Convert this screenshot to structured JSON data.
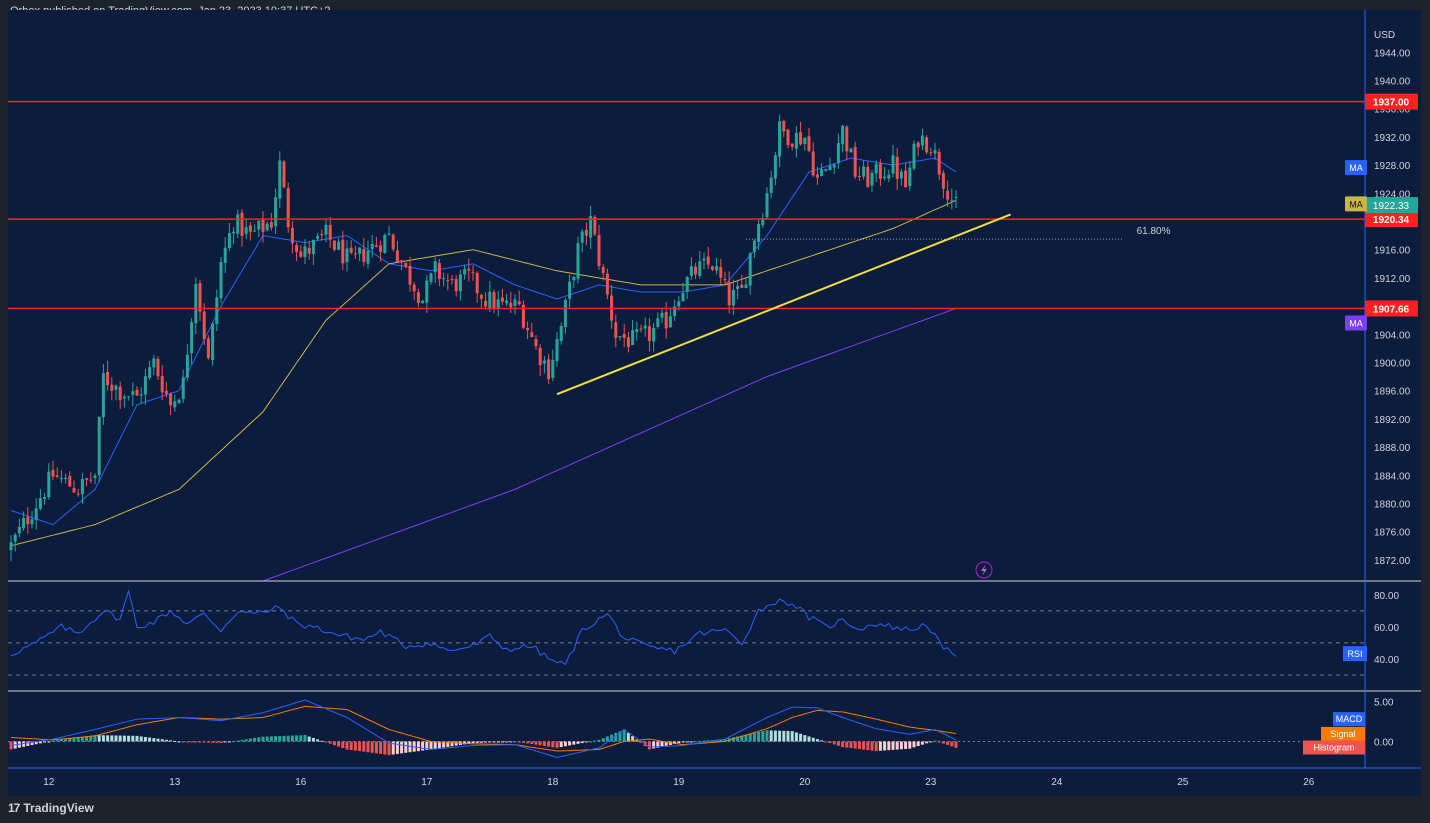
{
  "header": {
    "published_text": "Orbex published on TradingView.com, Jan 23, 2023 10:37 UTC+2"
  },
  "footer": {
    "logo_text": "TradingView"
  },
  "colors": {
    "background": "#0c1c3c",
    "frame": "#1e222d",
    "up_candle": "#26a69a",
    "down_candle": "#ef5350",
    "ma_blue": "#2962ff",
    "ma_yellow": "#c9b44a",
    "ma_purple": "#7b3ff2",
    "horizontal_level": "#ff2020",
    "trendline": "#f2e03a",
    "rsi_line": "#2962ff",
    "macd_line": "#2962ff",
    "signal_line": "#f57c00"
  },
  "chart_data": [
    {
      "type": "candlestick",
      "panel": "price",
      "currency_label": "USD",
      "x_tick_labels": [
        "12",
        "13",
        "16",
        "17",
        "18",
        "19",
        "20",
        "23",
        "24",
        "25",
        "26"
      ],
      "y_tick_labels": [
        "1944.00",
        "1940.00",
        "1936.00",
        "1932.00",
        "1928.00",
        "1924.00",
        "1920.00",
        "1916.00",
        "1912.00",
        "1908.00",
        "1904.00",
        "1900.00",
        "1896.00",
        "1892.00",
        "1888.00",
        "1884.00",
        "1880.00",
        "1876.00",
        "1872.00"
      ],
      "ylim": [
        1869,
        1950
      ],
      "grid": false,
      "close_anchors": [
        [
          0,
          1874
        ],
        [
          4,
          1878
        ],
        [
          10,
          1884
        ],
        [
          16,
          1882
        ],
        [
          20,
          1884
        ],
        [
          22,
          1898
        ],
        [
          26,
          1896
        ],
        [
          30,
          1895
        ],
        [
          34,
          1900
        ],
        [
          38,
          1894
        ],
        [
          41,
          1897
        ],
        [
          44,
          1912
        ],
        [
          47,
          1900
        ],
        [
          50,
          1914
        ],
        [
          53,
          1920
        ],
        [
          57,
          1918
        ],
        [
          62,
          1920
        ],
        [
          64,
          1928
        ],
        [
          66,
          1920
        ],
        [
          69,
          1915
        ],
        [
          75,
          1918
        ],
        [
          81,
          1914
        ],
        [
          85,
          1916
        ],
        [
          90,
          1918
        ],
        [
          94,
          1913
        ],
        [
          98,
          1909
        ],
        [
          101,
          1913
        ],
        [
          105,
          1911
        ],
        [
          109,
          1912
        ],
        [
          113,
          1909
        ],
        [
          117,
          1908
        ],
        [
          121,
          1908
        ],
        [
          125,
          1902
        ],
        [
          128,
          1899
        ],
        [
          131,
          1905
        ],
        [
          135,
          1916
        ],
        [
          138,
          1920
        ],
        [
          141,
          1912
        ],
        [
          144,
          1904
        ],
        [
          148,
          1903
        ],
        [
          152,
          1904
        ],
        [
          156,
          1906
        ],
        [
          159,
          1910
        ],
        [
          163,
          1913
        ],
        [
          167,
          1914
        ],
        [
          171,
          1909
        ],
        [
          174,
          1910
        ],
        [
          177,
          1918
        ],
        [
          180,
          1924
        ],
        [
          183,
          1933
        ],
        [
          186,
          1932
        ],
        [
          189,
          1932
        ],
        [
          192,
          1926
        ],
        [
          195,
          1928
        ],
        [
          198,
          1933
        ],
        [
          201,
          1927
        ],
        [
          204,
          1926
        ],
        [
          207,
          1927
        ],
        [
          210,
          1928
        ],
        [
          213,
          1925
        ],
        [
          216,
          1932
        ],
        [
          219,
          1931
        ],
        [
          222,
          1926
        ],
        [
          225,
          1922
        ]
      ],
      "last_price": 1922.33,
      "levels": [
        1937.0,
        1920.34,
        1907.66
      ],
      "fib_level": {
        "label": "61.80%",
        "price": 1917.5
      },
      "trendline": {
        "start": {
          "bar": 130,
          "price": 1895.5
        },
        "end": {
          "bar": 238,
          "price": 1921.0
        }
      },
      "moving_averages": [
        {
          "label": "MA",
          "anchors": [
            [
              0,
              1879
            ],
            [
              10,
              1877
            ],
            [
              20,
              1882
            ],
            [
              30,
              1894
            ],
            [
              40,
              1896
            ],
            [
              50,
              1908
            ],
            [
              60,
              1918
            ],
            [
              70,
              1917
            ],
            [
              80,
              1918
            ],
            [
              90,
              1914
            ],
            [
              100,
              1913
            ],
            [
              110,
              1914
            ],
            [
              120,
              1911
            ],
            [
              130,
              1909
            ],
            [
              140,
              1911
            ],
            [
              150,
              1910
            ],
            [
              160,
              1910
            ],
            [
              170,
              1911
            ],
            [
              180,
              1918
            ],
            [
              190,
              1927
            ],
            [
              200,
              1929
            ],
            [
              210,
              1928
            ],
            [
              220,
              1929
            ],
            [
              225,
              1927
            ]
          ]
        },
        {
          "label": "MA",
          "anchors": [
            [
              0,
              1874
            ],
            [
              20,
              1877
            ],
            [
              40,
              1882
            ],
            [
              60,
              1893
            ],
            [
              75,
              1906
            ],
            [
              90,
              1914
            ],
            [
              110,
              1916
            ],
            [
              130,
              1913
            ],
            [
              150,
              1911
            ],
            [
              170,
              1911
            ],
            [
              190,
              1915
            ],
            [
              210,
              1919
            ],
            [
              225,
              1923
            ]
          ]
        },
        {
          "label": "MA",
          "anchors": [
            [
              0,
              1862
            ],
            [
              60,
              1869
            ],
            [
              120,
              1882
            ],
            [
              180,
              1898
            ],
            [
              225,
              1907.66
            ]
          ]
        }
      ]
    },
    {
      "type": "line",
      "panel": "RSI",
      "series_label": "RSI",
      "y_tick_labels": [
        "80.00",
        "60.00",
        "40.00"
      ],
      "band_levels": [
        70,
        50,
        30
      ],
      "ylim": [
        20,
        88
      ],
      "anchors": [
        [
          0,
          43
        ],
        [
          6,
          50
        ],
        [
          12,
          60
        ],
        [
          16,
          56
        ],
        [
          22,
          70
        ],
        [
          26,
          65
        ],
        [
          28,
          82
        ],
        [
          30,
          60
        ],
        [
          34,
          63
        ],
        [
          38,
          70
        ],
        [
          42,
          62
        ],
        [
          46,
          68
        ],
        [
          50,
          58
        ],
        [
          54,
          70
        ],
        [
          58,
          68
        ],
        [
          64,
          72
        ],
        [
          68,
          62
        ],
        [
          72,
          60
        ],
        [
          78,
          55
        ],
        [
          84,
          52
        ],
        [
          88,
          57
        ],
        [
          94,
          48
        ],
        [
          100,
          50
        ],
        [
          104,
          45
        ],
        [
          110,
          48
        ],
        [
          114,
          54
        ],
        [
          118,
          46
        ],
        [
          124,
          48
        ],
        [
          128,
          40
        ],
        [
          132,
          36
        ],
        [
          136,
          58
        ],
        [
          142,
          68
        ],
        [
          146,
          53
        ],
        [
          152,
          47
        ],
        [
          158,
          45
        ],
        [
          164,
          56
        ],
        [
          170,
          58
        ],
        [
          174,
          50
        ],
        [
          178,
          70
        ],
        [
          182,
          76
        ],
        [
          186,
          75
        ],
        [
          190,
          66
        ],
        [
          194,
          60
        ],
        [
          198,
          64
        ],
        [
          202,
          59
        ],
        [
          206,
          62
        ],
        [
          210,
          60
        ],
        [
          214,
          58
        ],
        [
          218,
          62
        ],
        [
          222,
          46
        ],
        [
          225,
          43
        ]
      ]
    },
    {
      "type": "line",
      "panel": "MACD",
      "y_tick_labels": [
        "5.00",
        "0.00"
      ],
      "ylim": [
        -3.2,
        6.2
      ],
      "series": [
        {
          "name": "MACD",
          "anchors": [
            [
              0,
              -0.5
            ],
            [
              10,
              0.3
            ],
            [
              20,
              1.5
            ],
            [
              30,
              2.8
            ],
            [
              40,
              3.0
            ],
            [
              50,
              2.6
            ],
            [
              60,
              3.6
            ],
            [
              70,
              5.2
            ],
            [
              80,
              3.0
            ],
            [
              90,
              -0.2
            ],
            [
              100,
              -1.0
            ],
            [
              110,
              -0.5
            ],
            [
              120,
              -0.4
            ],
            [
              130,
              -2.0
            ],
            [
              140,
              -0.8
            ],
            [
              146,
              1.5
            ],
            [
              152,
              -0.7
            ],
            [
              160,
              -0.5
            ],
            [
              170,
              0.3
            ],
            [
              180,
              3.0
            ],
            [
              186,
              4.3
            ],
            [
              192,
              4.2
            ],
            [
              198,
              3.0
            ],
            [
              206,
              1.6
            ],
            [
              214,
              0.9
            ],
            [
              220,
              1.5
            ],
            [
              225,
              0.2
            ]
          ]
        },
        {
          "name": "Signal",
          "anchors": [
            [
              0,
              0.5
            ],
            [
              10,
              0.2
            ],
            [
              20,
              0.7
            ],
            [
              30,
              2.1
            ],
            [
              40,
              3.0
            ],
            [
              50,
              2.8
            ],
            [
              60,
              3.0
            ],
            [
              70,
              4.4
            ],
            [
              80,
              4.0
            ],
            [
              90,
              1.5
            ],
            [
              100,
              0.0
            ],
            [
              110,
              -0.3
            ],
            [
              120,
              -0.4
            ],
            [
              130,
              -1.2
            ],
            [
              140,
              -1.0
            ],
            [
              146,
              0.0
            ],
            [
              152,
              0.3
            ],
            [
              160,
              -0.4
            ],
            [
              170,
              0.0
            ],
            [
              180,
              1.6
            ],
            [
              186,
              3.0
            ],
            [
              192,
              3.9
            ],
            [
              198,
              3.7
            ],
            [
              206,
              2.8
            ],
            [
              214,
              1.8
            ],
            [
              220,
              1.4
            ],
            [
              225,
              1.0
            ]
          ]
        },
        {
          "name": "Histogram"
        }
      ]
    }
  ]
}
